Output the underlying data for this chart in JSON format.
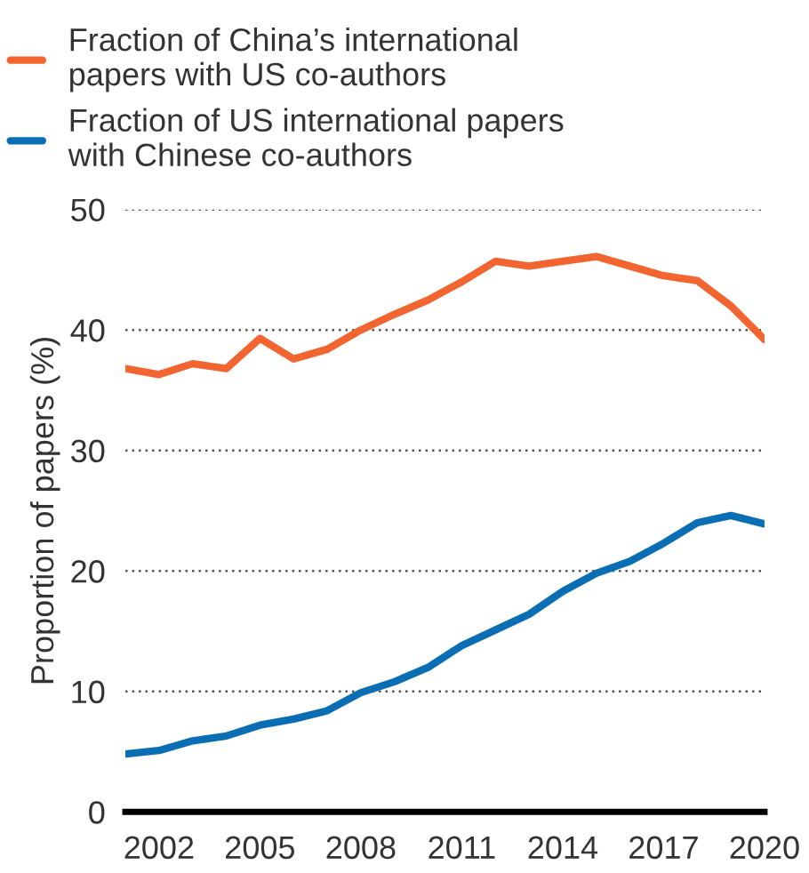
{
  "chart_data": {
    "type": "line",
    "ylabel": "Proportion of papers (%)",
    "x": [
      2001,
      2002,
      2003,
      2004,
      2005,
      2006,
      2007,
      2008,
      2009,
      2010,
      2011,
      2012,
      2013,
      2014,
      2015,
      2016,
      2017,
      2018,
      2019,
      2020
    ],
    "series": [
      {
        "name": "Fraction of China’s international\npapers with US co-authors",
        "color": "#f26530",
        "values": [
          36.8,
          36.3,
          37.2,
          36.8,
          39.3,
          37.6,
          38.4,
          40.0,
          41.3,
          42.5,
          44.0,
          45.7,
          45.3,
          45.7,
          46.1,
          45.3,
          44.5,
          44.1,
          42.0,
          39.2
        ]
      },
      {
        "name": "Fraction of US international papers\nwith Chinese co-authors",
        "color": "#0a6eb4",
        "values": [
          4.8,
          5.1,
          5.9,
          6.3,
          7.2,
          7.7,
          8.4,
          9.9,
          10.8,
          12.0,
          13.8,
          15.1,
          16.4,
          18.3,
          19.8,
          20.8,
          22.3,
          24.0,
          24.6,
          23.9
        ]
      }
    ],
    "xlim": [
      2001,
      2020
    ],
    "xticks": [
      2002,
      2005,
      2008,
      2011,
      2014,
      2017,
      2020
    ],
    "ylim": [
      0,
      50
    ],
    "yticks": [
      0,
      10,
      20,
      30,
      40,
      50
    ],
    "grid": "y",
    "legend": "top left",
    "marker": "none",
    "line_style": "solid"
  }
}
